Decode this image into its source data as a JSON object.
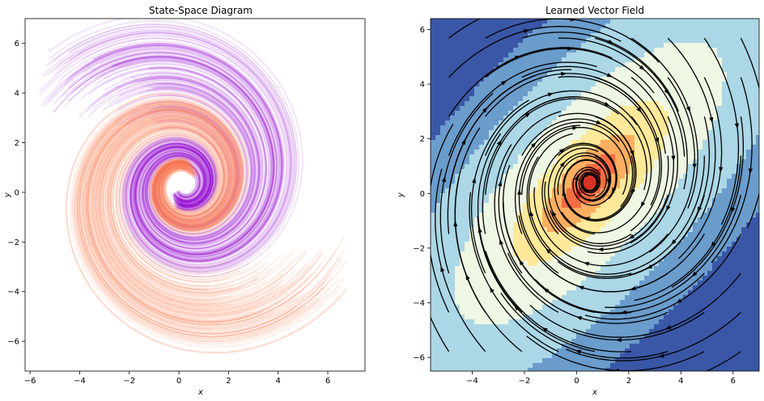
{
  "chart_data": [
    {
      "type": "line",
      "title": "State-Space Diagram",
      "xlabel": "x",
      "ylabel": "y",
      "xlim": [
        -6.2,
        7.5
      ],
      "ylim": [
        -7.2,
        7.0
      ],
      "xticks": [
        -6,
        -4,
        -2,
        0,
        2,
        4,
        6
      ],
      "yticks": [
        -6,
        -4,
        -2,
        0,
        2,
        4,
        6
      ],
      "xtick_labels": [
        "−6",
        "−4",
        "−2",
        "0",
        "2",
        "4",
        "6"
      ],
      "ytick_labels": [
        "−6",
        "−4",
        "−2",
        "0",
        "2",
        "4",
        "6"
      ],
      "grid": false,
      "series": [
        {
          "color": "#9400D3",
          "description_free": true,
          "start_region": {
            "x": [
              -5.6,
              -0.6
            ],
            "y": [
              1.5,
              6.2
            ]
          },
          "end_point": {
            "x": 0.2,
            "y": 0.3
          }
        },
        {
          "color": "#FF7F50",
          "start_region": {
            "x": [
              1.0,
              6.8
            ],
            "y": [
              -6.3,
              -1.5
            ]
          },
          "end_point": {
            "x": 0.2,
            "y": 0.3
          }
        }
      ]
    },
    {
      "type": "heatmap",
      "title": "Learned Vector Field",
      "xlabel": "x",
      "ylabel": "y",
      "xlim": [
        -5.6,
        7.0
      ],
      "ylim": [
        -6.5,
        6.4
      ],
      "xticks": [
        -4,
        -2,
        0,
        2,
        4,
        6
      ],
      "yticks": [
        -6,
        -4,
        -2,
        0,
        2,
        4,
        6
      ],
      "xtick_labels": [
        "−4",
        "−2",
        "0",
        "2",
        "4",
        "6"
      ],
      "ytick_labels": [
        "−6",
        "−4",
        "−2",
        "0",
        "2",
        "4",
        "6"
      ],
      "grid": false,
      "overlay": "streamlines",
      "colormap": [
        "#3a57a7",
        "#6a9ccc",
        "#abd7e6",
        "#eef7e3",
        "#fee99a",
        "#fdae61",
        "#f46d43",
        "#d73027"
      ],
      "field_center": {
        "x": 0.5,
        "y": 0.4
      }
    }
  ]
}
